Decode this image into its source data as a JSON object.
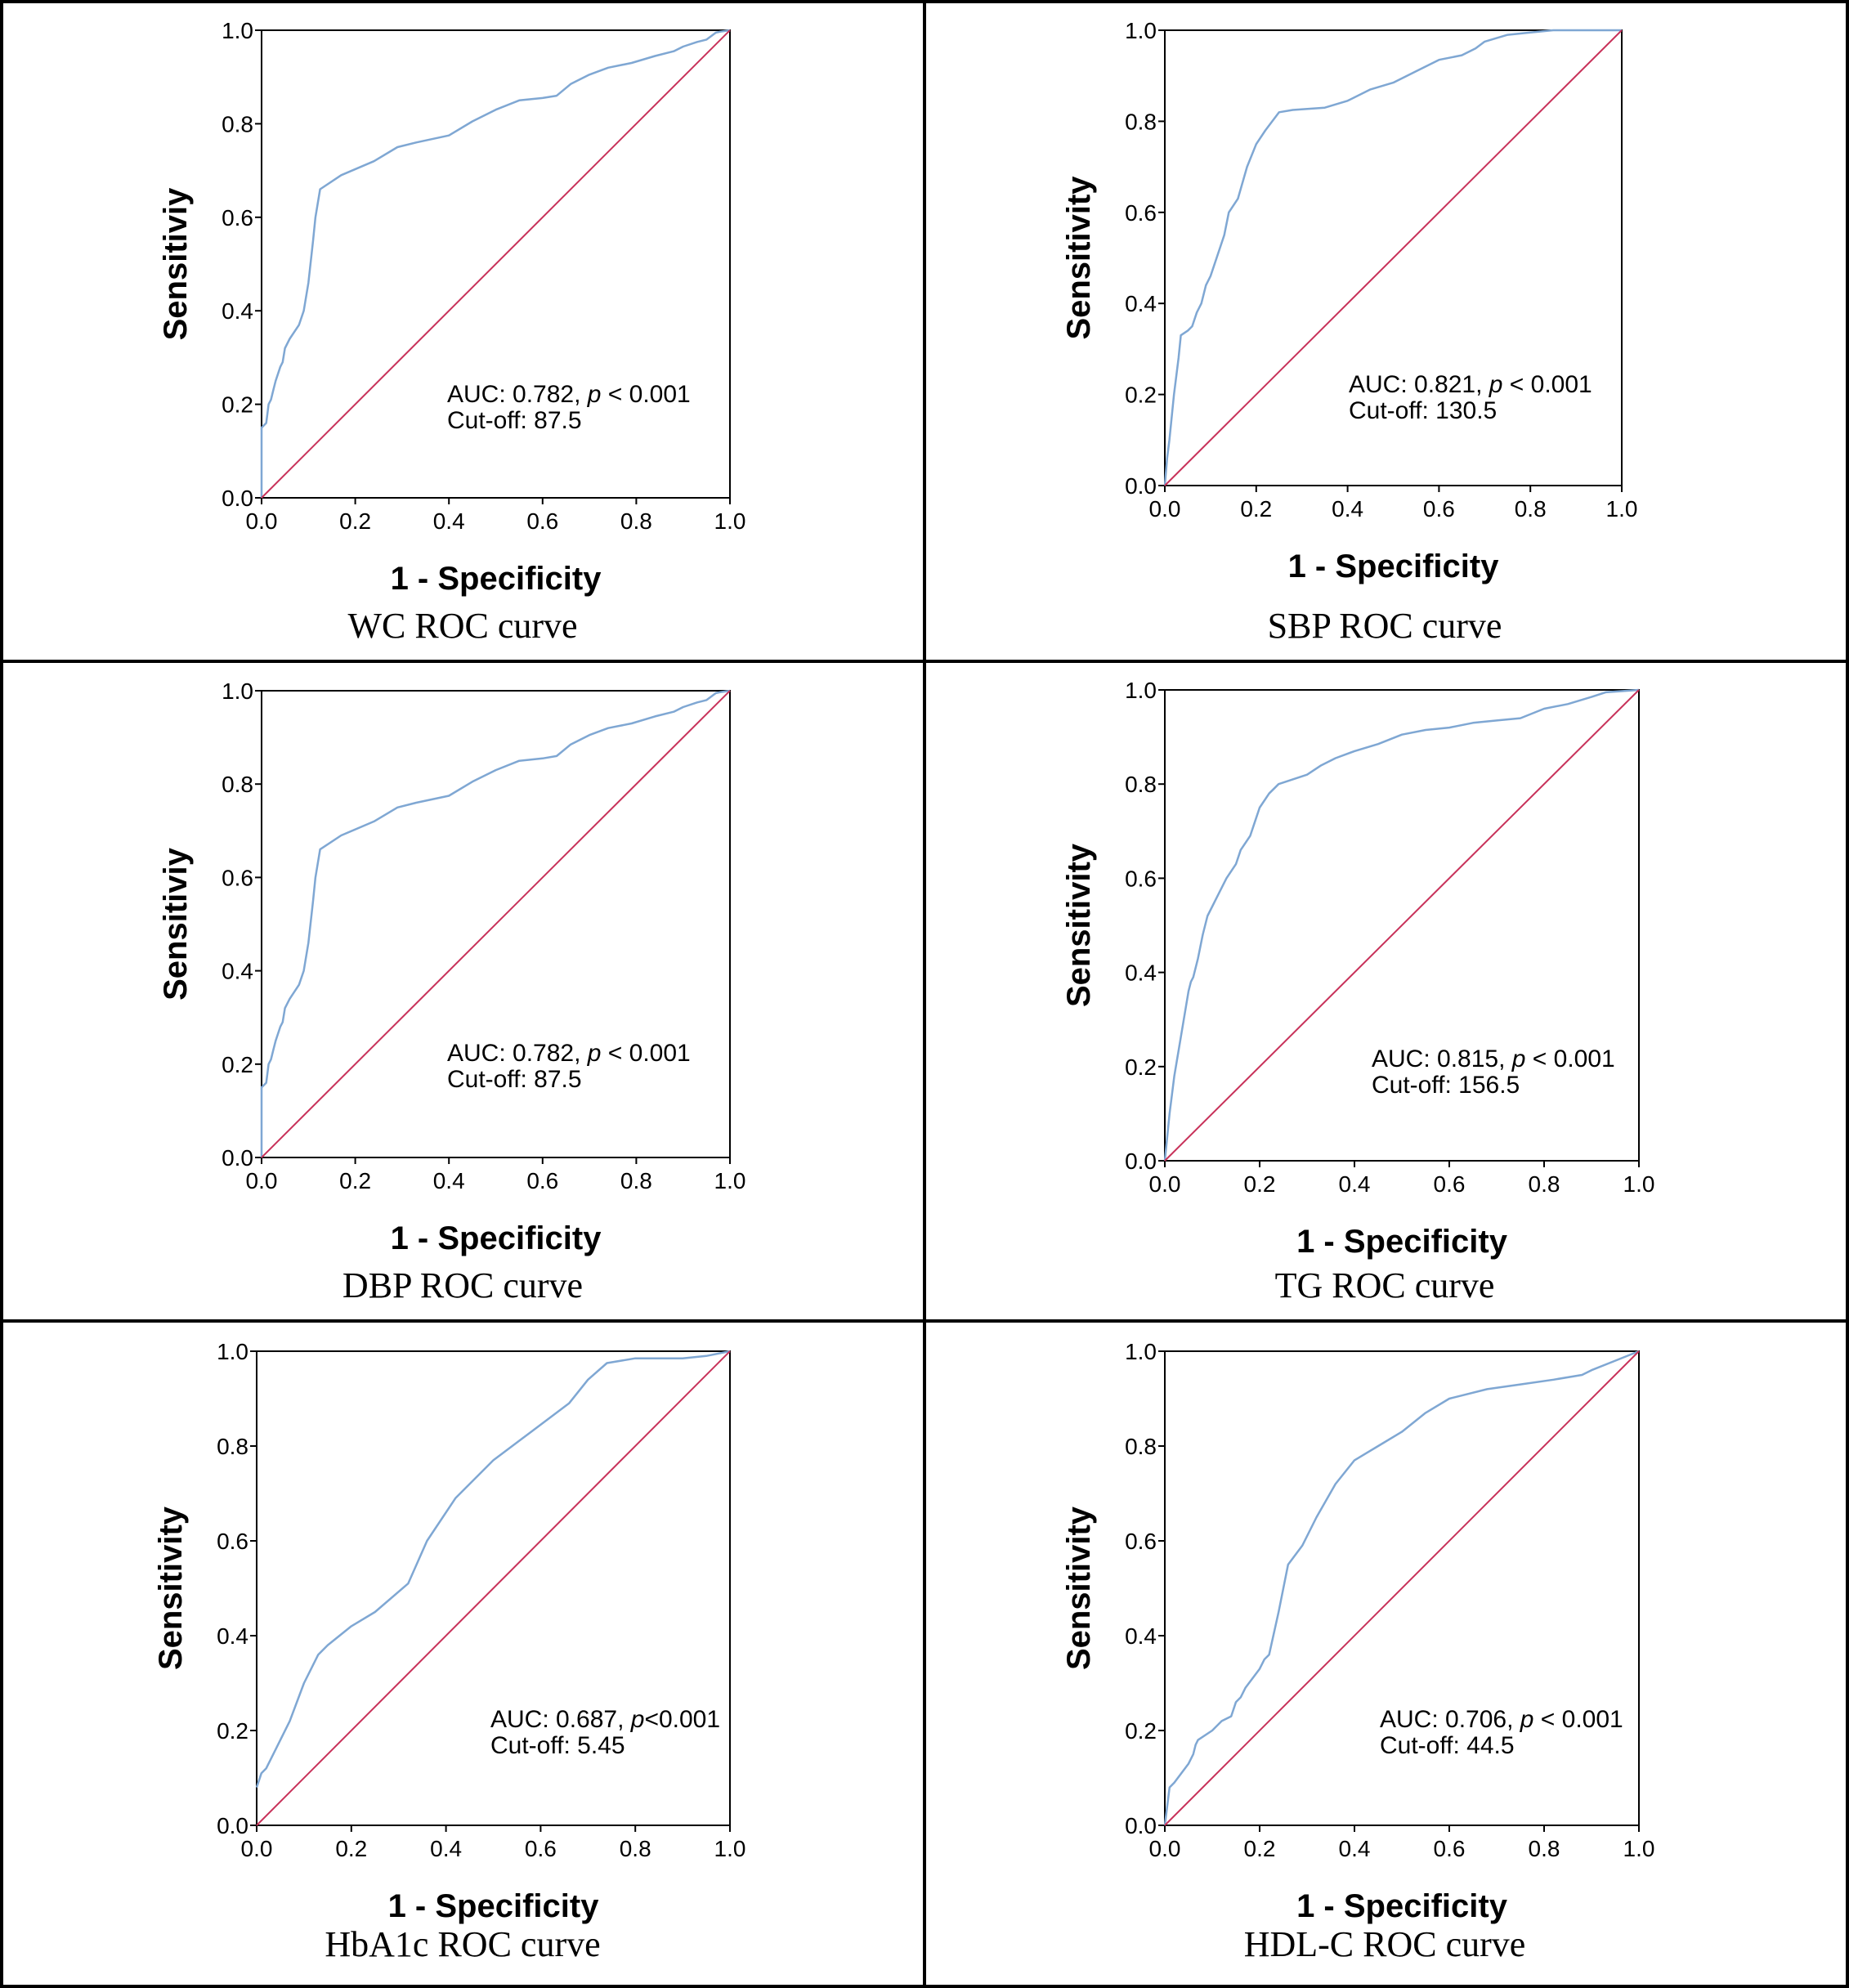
{
  "chart_data": [
    {
      "type": "line",
      "caption": "WC ROC curve",
      "xlabel": "1 - Specificity",
      "ylabel": "Sensitiviy",
      "xlim": [
        0,
        1
      ],
      "ylim": [
        0,
        1
      ],
      "ticks": [
        "0.0",
        "0.2",
        "0.4",
        "0.6",
        "0.8",
        "1.0"
      ],
      "annotation": {
        "line1_prefix": "AUC: 0.782, ",
        "p": "p",
        "line1_suffix": " < 0.001",
        "line2": "Cut-off: 87.5"
      },
      "series": [
        {
          "role": "roc",
          "color": "#7fa7d3",
          "x": [
            0,
            0,
            0.01,
            0.015,
            0.02,
            0.025,
            0.03,
            0.04,
            0.045,
            0.05,
            0.06,
            0.08,
            0.09,
            0.1,
            0.11,
            0.115,
            0.125,
            0.17,
            0.24,
            0.29,
            0.33,
            0.4,
            0.45,
            0.5,
            0.55,
            0.6,
            0.63,
            0.66,
            0.7,
            0.74,
            0.79,
            0.84,
            0.88,
            0.9,
            0.93,
            0.95,
            0.97,
            0.98,
            1.0
          ],
          "y": [
            0,
            0.15,
            0.16,
            0.2,
            0.21,
            0.23,
            0.25,
            0.28,
            0.29,
            0.32,
            0.34,
            0.37,
            0.4,
            0.46,
            0.55,
            0.6,
            0.66,
            0.69,
            0.72,
            0.75,
            0.76,
            0.775,
            0.805,
            0.83,
            0.85,
            0.855,
            0.86,
            0.885,
            0.905,
            0.92,
            0.93,
            0.945,
            0.955,
            0.965,
            0.975,
            0.98,
            0.995,
            0.997,
            1.0
          ]
        },
        {
          "role": "reference",
          "color": "#c8325a",
          "x": [
            0,
            1
          ],
          "y": [
            0,
            1
          ]
        }
      ]
    },
    {
      "type": "line",
      "caption": "SBP ROC curve",
      "xlabel": "1 - Specificity",
      "ylabel": "Sensitivity",
      "xlim": [
        0,
        1
      ],
      "ylim": [
        0,
        1
      ],
      "ticks": [
        "0.0",
        "0.2",
        "0.4",
        "0.6",
        "0.8",
        "1.0"
      ],
      "annotation": {
        "line1_prefix": "AUC: 0.821, ",
        "p": "p",
        "line1_suffix": " < 0.001",
        "line2": "Cut-off: 130.5"
      },
      "series": [
        {
          "role": "roc",
          "color": "#7fa7d3",
          "x": [
            0,
            0.005,
            0.01,
            0.015,
            0.02,
            0.025,
            0.03,
            0.035,
            0.05,
            0.06,
            0.07,
            0.08,
            0.09,
            0.1,
            0.12,
            0.13,
            0.14,
            0.16,
            0.18,
            0.2,
            0.22,
            0.25,
            0.28,
            0.35,
            0.4,
            0.45,
            0.5,
            0.55,
            0.6,
            0.65,
            0.68,
            0.7,
            0.75,
            0.8,
            0.85,
            0.9,
            1.0
          ],
          "y": [
            0,
            0.06,
            0.1,
            0.15,
            0.2,
            0.24,
            0.28,
            0.33,
            0.34,
            0.35,
            0.38,
            0.4,
            0.44,
            0.46,
            0.52,
            0.55,
            0.6,
            0.63,
            0.7,
            0.75,
            0.78,
            0.82,
            0.825,
            0.83,
            0.845,
            0.87,
            0.885,
            0.91,
            0.935,
            0.945,
            0.96,
            0.975,
            0.99,
            0.995,
            1.0,
            1.0,
            1.0
          ]
        },
        {
          "role": "reference",
          "color": "#c8325a",
          "x": [
            0,
            1
          ],
          "y": [
            0,
            1
          ]
        }
      ]
    },
    {
      "type": "line",
      "caption": "DBP ROC curve",
      "xlabel": "1 - Specificity",
      "ylabel": "Sensitiviy",
      "xlim": [
        0,
        1
      ],
      "ylim": [
        0,
        1
      ],
      "ticks": [
        "0.0",
        "0.2",
        "0.4",
        "0.6",
        "0.8",
        "1.0"
      ],
      "annotation": {
        "line1_prefix": "AUC: 0.782, ",
        "p": "p",
        "line1_suffix": " < 0.001",
        "line2": "Cut-off: 87.5"
      },
      "series": [
        {
          "role": "roc",
          "color": "#7fa7d3",
          "x": [
            0,
            0,
            0.01,
            0.015,
            0.02,
            0.025,
            0.03,
            0.04,
            0.045,
            0.05,
            0.06,
            0.08,
            0.09,
            0.1,
            0.11,
            0.115,
            0.125,
            0.17,
            0.24,
            0.29,
            0.33,
            0.4,
            0.45,
            0.5,
            0.55,
            0.6,
            0.63,
            0.66,
            0.7,
            0.74,
            0.79,
            0.84,
            0.88,
            0.9,
            0.93,
            0.95,
            0.97,
            0.98,
            1.0
          ],
          "y": [
            0,
            0.15,
            0.16,
            0.2,
            0.21,
            0.23,
            0.25,
            0.28,
            0.29,
            0.32,
            0.34,
            0.37,
            0.4,
            0.46,
            0.55,
            0.6,
            0.66,
            0.69,
            0.72,
            0.75,
            0.76,
            0.775,
            0.805,
            0.83,
            0.85,
            0.855,
            0.86,
            0.885,
            0.905,
            0.92,
            0.93,
            0.945,
            0.955,
            0.965,
            0.975,
            0.98,
            0.995,
            0.997,
            1.0
          ]
        },
        {
          "role": "reference",
          "color": "#c8325a",
          "x": [
            0,
            1
          ],
          "y": [
            0,
            1
          ]
        }
      ]
    },
    {
      "type": "line",
      "caption": "TG ROC curve",
      "xlabel": "1 - Specificity",
      "ylabel": "Sensitivity",
      "xlim": [
        0,
        1
      ],
      "ylim": [
        0,
        1
      ],
      "ticks": [
        "0.0",
        "0.2",
        "0.4",
        "0.6",
        "0.8",
        "1.0"
      ],
      "annotation": {
        "line1_prefix": "AUC: 0.815, ",
        "p": "p",
        "line1_suffix": " < 0.001",
        "line2": "Cut-off: 156.5"
      },
      "series": [
        {
          "role": "roc",
          "color": "#7fa7d3",
          "x": [
            0,
            0.005,
            0.01,
            0.015,
            0.02,
            0.025,
            0.03,
            0.04,
            0.05,
            0.055,
            0.06,
            0.07,
            0.08,
            0.09,
            0.1,
            0.11,
            0.12,
            0.13,
            0.15,
            0.16,
            0.18,
            0.19,
            0.2,
            0.22,
            0.24,
            0.27,
            0.3,
            0.33,
            0.36,
            0.4,
            0.45,
            0.5,
            0.55,
            0.6,
            0.65,
            0.7,
            0.75,
            0.8,
            0.85,
            0.9,
            0.93,
            1.0
          ],
          "y": [
            0,
            0.05,
            0.1,
            0.14,
            0.18,
            0.21,
            0.24,
            0.3,
            0.36,
            0.38,
            0.39,
            0.43,
            0.48,
            0.52,
            0.54,
            0.56,
            0.58,
            0.6,
            0.63,
            0.66,
            0.69,
            0.72,
            0.75,
            0.78,
            0.8,
            0.81,
            0.82,
            0.84,
            0.855,
            0.87,
            0.885,
            0.905,
            0.915,
            0.92,
            0.93,
            0.935,
            0.94,
            0.96,
            0.97,
            0.985,
            0.995,
            1.0
          ]
        },
        {
          "role": "reference",
          "color": "#c8325a",
          "x": [
            0,
            1
          ],
          "y": [
            0,
            1
          ]
        }
      ]
    },
    {
      "type": "line",
      "caption": "HbA1c ROC curve",
      "xlabel": "1 - Specificity",
      "ylabel": "Sensitivity",
      "xlim": [
        0,
        1
      ],
      "ylim": [
        0,
        1
      ],
      "ticks": [
        "0.0",
        "0.2",
        "0.4",
        "0.6",
        "0.8",
        "1.0"
      ],
      "annotation": {
        "line1_prefix": "AUC: 0.687, ",
        "p": "p",
        "line1_suffix": "<0.001",
        "line2": "Cut-off: 5.45"
      },
      "series": [
        {
          "role": "roc",
          "color": "#7fa7d3",
          "x": [
            0,
            0.01,
            0.02,
            0.04,
            0.07,
            0.1,
            0.13,
            0.15,
            0.2,
            0.25,
            0.32,
            0.36,
            0.42,
            0.5,
            0.58,
            0.66,
            0.7,
            0.74,
            0.8,
            0.9,
            0.95,
            1.0
          ],
          "y": [
            0.08,
            0.11,
            0.12,
            0.16,
            0.22,
            0.3,
            0.36,
            0.38,
            0.42,
            0.45,
            0.51,
            0.6,
            0.69,
            0.77,
            0.83,
            0.89,
            0.94,
            0.975,
            0.985,
            0.985,
            0.99,
            1.0
          ]
        },
        {
          "role": "reference",
          "color": "#c8325a",
          "x": [
            0,
            1
          ],
          "y": [
            0,
            1
          ]
        }
      ]
    },
    {
      "type": "line",
      "caption": "HDL-C ROC curve",
      "xlabel": "1 - Specificity",
      "ylabel": "Sensitivity",
      "xlim": [
        0,
        1
      ],
      "ylim": [
        0,
        1
      ],
      "ticks": [
        "0.0",
        "0.2",
        "0.4",
        "0.6",
        "0.8",
        "1.0"
      ],
      "annotation": {
        "line1_prefix": "AUC: 0.706, ",
        "p": "p",
        "line1_suffix": " < 0.001",
        "line2": "Cut-off: 44.5"
      },
      "series": [
        {
          "role": "roc",
          "color": "#7fa7d3",
          "x": [
            0,
            0.01,
            0.02,
            0.05,
            0.06,
            0.065,
            0.07,
            0.1,
            0.12,
            0.14,
            0.15,
            0.16,
            0.17,
            0.2,
            0.21,
            0.22,
            0.24,
            0.25,
            0.26,
            0.29,
            0.32,
            0.36,
            0.4,
            0.45,
            0.5,
            0.55,
            0.6,
            0.68,
            0.75,
            0.82,
            0.88,
            0.9,
            0.95,
            1.0
          ],
          "y": [
            0,
            0.08,
            0.09,
            0.13,
            0.15,
            0.17,
            0.18,
            0.2,
            0.22,
            0.23,
            0.26,
            0.27,
            0.29,
            0.33,
            0.35,
            0.36,
            0.45,
            0.5,
            0.55,
            0.59,
            0.65,
            0.72,
            0.77,
            0.8,
            0.83,
            0.87,
            0.9,
            0.92,
            0.93,
            0.94,
            0.95,
            0.96,
            0.98,
            1.0
          ]
        },
        {
          "role": "reference",
          "color": "#c8325a",
          "x": [
            0,
            1
          ],
          "y": [
            0,
            1
          ]
        }
      ]
    }
  ]
}
